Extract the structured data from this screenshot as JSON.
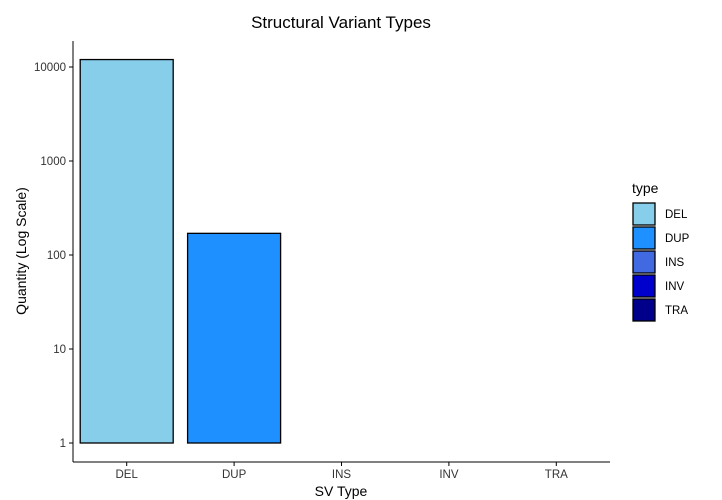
{
  "chart_data": {
    "type": "bar",
    "title": "Structural Variant Types",
    "xlabel": "SV Type",
    "ylabel": "Quantity (Log Scale)",
    "y_scale": "log10",
    "ylim": [
      1,
      10000
    ],
    "y_ticks": [
      "1",
      "10",
      "100",
      "1000",
      "10000"
    ],
    "categories": [
      "DEL",
      "DUP",
      "INS",
      "INV",
      "TRA"
    ],
    "values": [
      12000,
      170,
      null,
      null,
      null
    ],
    "colors": [
      "#87ceeb",
      "#1e90ff",
      "#4169e1",
      "#0000cd",
      "#00008b"
    ],
    "grid": false,
    "legend": {
      "title": "type",
      "position": "right",
      "entries": [
        "DEL",
        "DUP",
        "INS",
        "INV",
        "TRA"
      ]
    }
  }
}
